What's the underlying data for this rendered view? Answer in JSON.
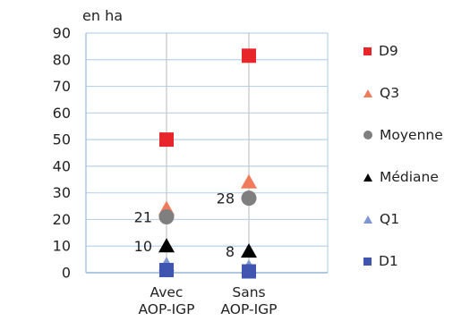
{
  "chart_data": {
    "type": "scatter",
    "title": "",
    "axis_title": "en ha",
    "xlabel": "",
    "ylabel": "",
    "categories": [
      [
        "Avec",
        "AOP-IGP"
      ],
      [
        "Sans",
        "AOP-IGP"
      ]
    ],
    "ylim": [
      0,
      90
    ],
    "yticks": [
      0,
      10,
      20,
      30,
      40,
      50,
      60,
      70,
      80,
      90
    ],
    "grid": true,
    "legend_position": "right",
    "series": [
      {
        "name": "D9",
        "marker": "square",
        "color": "#e8262a",
        "values": [
          50,
          81.5
        ]
      },
      {
        "name": "Q3",
        "marker": "triangle",
        "color": "#f07b5c",
        "values": [
          24,
          34
        ]
      },
      {
        "name": "Moyenne",
        "marker": "circle",
        "color": "#7f7f7f",
        "values": [
          21,
          28
        ]
      },
      {
        "name": "Médiane",
        "marker": "triangle",
        "color": "#000000",
        "values": [
          10,
          8
        ]
      },
      {
        "name": "Q1",
        "marker": "triangle",
        "color": "#7f96d0",
        "values": [
          3,
          2
        ]
      },
      {
        "name": "D1",
        "marker": "square",
        "color": "#3f55b0",
        "values": [
          1,
          0.5
        ]
      }
    ],
    "data_labels": [
      {
        "series": "Moyenne",
        "category": 0,
        "text": "21"
      },
      {
        "series": "Moyenne",
        "category": 1,
        "text": "28"
      },
      {
        "series": "Médiane",
        "category": 0,
        "text": "10"
      },
      {
        "series": "Médiane",
        "category": 1,
        "text": "8"
      }
    ],
    "colors": {
      "grid": "#b9d3ea",
      "axis": "#9bbad8"
    }
  }
}
